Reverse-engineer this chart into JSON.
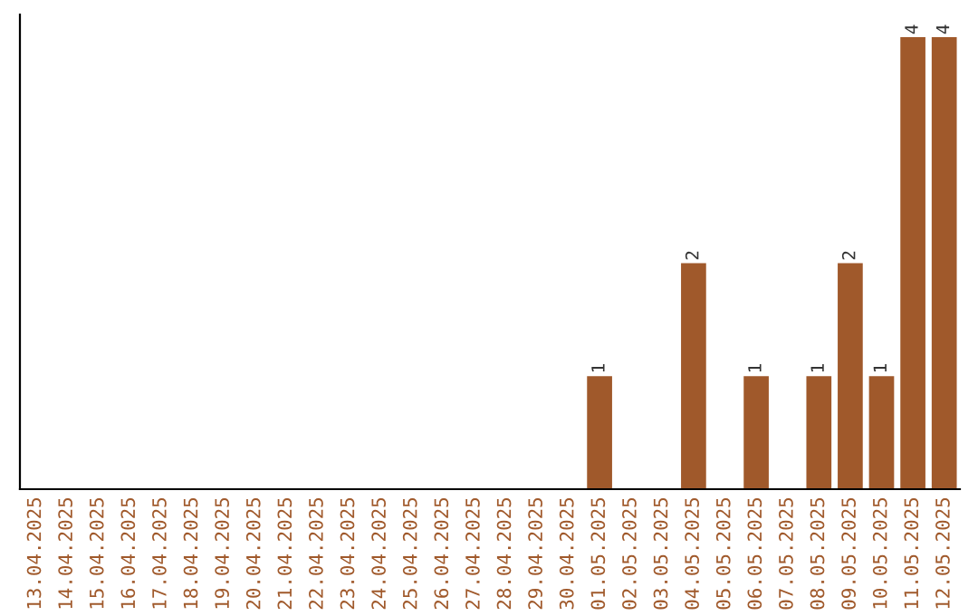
{
  "chart_data": {
    "type": "bar",
    "categories": [
      "13.04.2025",
      "14.04.2025",
      "15.04.2025",
      "16.04.2025",
      "17.04.2025",
      "18.04.2025",
      "19.04.2025",
      "20.04.2025",
      "21.04.2025",
      "22.04.2025",
      "23.04.2025",
      "24.04.2025",
      "25.04.2025",
      "26.04.2025",
      "27.04.2025",
      "28.04.2025",
      "29.04.2025",
      "30.04.2025",
      "01.05.2025",
      "02.05.2025",
      "03.05.2025",
      "04.05.2025",
      "05.05.2025",
      "06.05.2025",
      "07.05.2025",
      "08.05.2025",
      "09.05.2025",
      "10.05.2025",
      "11.05.2025",
      "12.05.2025"
    ],
    "values": [
      null,
      null,
      null,
      null,
      null,
      null,
      null,
      null,
      null,
      null,
      null,
      null,
      null,
      null,
      null,
      null,
      null,
      null,
      1,
      null,
      null,
      2,
      null,
      1,
      null,
      1,
      2,
      1,
      4,
      4
    ],
    "value_labels": [
      null,
      null,
      null,
      null,
      null,
      null,
      null,
      null,
      null,
      null,
      null,
      null,
      null,
      null,
      null,
      null,
      null,
      null,
      "1",
      null,
      null,
      "2",
      null,
      "1",
      null,
      "1",
      "2",
      "1",
      "4",
      "4"
    ],
    "color": "#a0592b",
    "tick_labels": "x",
    "grid": false,
    "legend": false
  }
}
